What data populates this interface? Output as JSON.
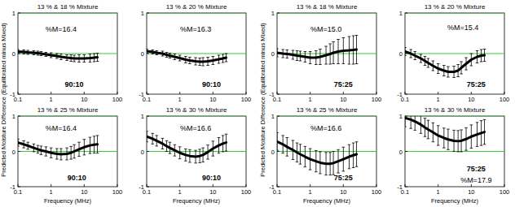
{
  "chart_data": [
    {
      "type": "line",
      "title": "13 % & 18 % Mixture",
      "ylabel": "Predicted Moisture Difference (Equilibrated minus Mixed)",
      "log": "x",
      "grid": false,
      "xlim": [
        0.1,
        100
      ],
      "ylim": [
        -1,
        1
      ],
      "xticks": [
        0.1,
        1,
        10,
        100
      ],
      "yticks": [
        -1,
        0,
        1
      ],
      "hlines": [
        0,
        1
      ],
      "x": [
        0.1,
        0.15,
        0.2,
        0.3,
        0.4,
        0.5,
        0.7,
        1,
        1.5,
        2,
        3,
        4,
        5,
        7,
        10,
        15,
        20,
        25
      ],
      "series": [
        {
          "color": "#000000",
          "values": [
            0.05,
            0.04,
            0.03,
            0.02,
            0.01,
            0,
            -0.02,
            -0.04,
            -0.06,
            -0.08,
            -0.1,
            -0.11,
            -0.12,
            -0.12,
            -0.12,
            -0.11,
            -0.1,
            -0.09
          ],
          "errors": [
            0.05,
            0.05,
            0.05,
            0.05,
            0.05,
            0.05,
            0.05,
            0.06,
            0.06,
            0.07,
            0.07,
            0.08,
            0.08,
            0.09,
            0.09,
            0.1,
            0.1,
            0.1
          ]
        }
      ],
      "annotations": [
        {
          "text": "%M=16.4",
          "x": 2,
          "y": 0.6
        },
        {
          "text": "90:10",
          "x": 5,
          "y": -0.75
        }
      ]
    },
    {
      "type": "line",
      "title": "13 % & 20 % Mixture",
      "log": "x",
      "grid": false,
      "xlim": [
        0.1,
        100
      ],
      "ylim": [
        -1,
        1
      ],
      "xticks": [
        0.1,
        1,
        10,
        100
      ],
      "yticks": [
        -1,
        0,
        1
      ],
      "hlines": [
        0,
        1
      ],
      "x": [
        0.1,
        0.15,
        0.2,
        0.3,
        0.4,
        0.5,
        0.7,
        1,
        1.5,
        2,
        3,
        4,
        5,
        7,
        10,
        15,
        20,
        25
      ],
      "series": [
        {
          "color": "#000000",
          "values": [
            0.06,
            0.04,
            0.02,
            0,
            -0.03,
            -0.05,
            -0.08,
            -0.11,
            -0.15,
            -0.17,
            -0.19,
            -0.2,
            -0.2,
            -0.19,
            -0.17,
            -0.14,
            -0.12,
            -0.1
          ],
          "errors": [
            0.05,
            0.05,
            0.05,
            0.06,
            0.06,
            0.06,
            0.07,
            0.07,
            0.08,
            0.08,
            0.09,
            0.09,
            0.1,
            0.1,
            0.1,
            0.1,
            0.1,
            0.1
          ]
        }
      ],
      "annotations": [
        {
          "text": "%M=16.3",
          "x": 3,
          "y": 0.6
        },
        {
          "text": "90:10",
          "x": 9,
          "y": -0.75
        }
      ]
    },
    {
      "type": "line",
      "title": "13 % & 18 % Mixture",
      "ylabel": "Predicted Moisture Difference (Equilibrated minus Mixed)",
      "log": "x",
      "grid": false,
      "xlim": [
        0.1,
        100
      ],
      "ylim": [
        -1,
        1
      ],
      "xticks": [
        0.1,
        1,
        10,
        100
      ],
      "yticks": [
        -1,
        0,
        1
      ],
      "hlines": [
        0,
        1
      ],
      "x": [
        0.1,
        0.15,
        0.2,
        0.3,
        0.4,
        0.5,
        0.7,
        1,
        1.5,
        2,
        3,
        4,
        5,
        7,
        10,
        15,
        20,
        25
      ],
      "series": [
        {
          "color": "#000000",
          "values": [
            0.02,
            0,
            -0.01,
            -0.03,
            -0.05,
            -0.06,
            -0.08,
            -0.1,
            -0.1,
            -0.08,
            -0.04,
            -0.01,
            0.02,
            0.05,
            0.07,
            0.08,
            0.09,
            0.1
          ],
          "errors": [
            0.1,
            0.1,
            0.1,
            0.11,
            0.12,
            0.12,
            0.13,
            0.15,
            0.17,
            0.19,
            0.22,
            0.25,
            0.27,
            0.3,
            0.32,
            0.34,
            0.35,
            0.35
          ]
        }
      ],
      "annotations": [
        {
          "text": "%M=15.0",
          "x": 3,
          "y": 0.6
        },
        {
          "text": "75:25",
          "x": 10,
          "y": -0.75
        }
      ]
    },
    {
      "type": "line",
      "title": "13 % & 20 % Mixture",
      "log": "x",
      "grid": false,
      "xlim": [
        0.1,
        100
      ],
      "ylim": [
        -1,
        1
      ],
      "xticks": [
        0.1,
        1,
        10,
        100
      ],
      "yticks": [
        -1,
        0,
        1
      ],
      "hlines": [
        0,
        1
      ],
      "x": [
        0.1,
        0.15,
        0.2,
        0.3,
        0.4,
        0.5,
        0.7,
        1,
        1.5,
        2,
        3,
        4,
        5,
        7,
        10,
        15,
        20,
        25
      ],
      "series": [
        {
          "color": "#000000",
          "values": [
            0.05,
            0,
            -0.05,
            -0.12,
            -0.18,
            -0.23,
            -0.3,
            -0.37,
            -0.42,
            -0.45,
            -0.45,
            -0.42,
            -0.35,
            -0.25,
            -0.15,
            -0.08,
            -0.05,
            -0.04
          ],
          "errors": [
            0.1,
            0.1,
            0.1,
            0.1,
            0.11,
            0.11,
            0.12,
            0.12,
            0.13,
            0.13,
            0.14,
            0.15,
            0.15,
            0.15,
            0.15,
            0.15,
            0.15,
            0.15
          ]
        }
      ],
      "annotations": [
        {
          "text": "%M=15.4",
          "x": 5.6,
          "y": 0.65
        },
        {
          "text": "75:25",
          "x": 14,
          "y": -0.75
        }
      ]
    },
    {
      "type": "line",
      "title": "13 % & 25 % Mixture",
      "xlabel": "Frequency (MHz)",
      "log": "x",
      "grid": false,
      "xlim": [
        0.1,
        100
      ],
      "ylim": [
        -1,
        1
      ],
      "xticks": [
        0.1,
        1,
        10,
        100
      ],
      "yticks": [
        -1,
        0,
        1
      ],
      "hlines": [
        0,
        1
      ],
      "x": [
        0.1,
        0.15,
        0.2,
        0.3,
        0.4,
        0.5,
        0.7,
        1,
        1.5,
        2,
        3,
        4,
        5,
        7,
        10,
        15,
        20,
        25
      ],
      "series": [
        {
          "color": "#000000",
          "values": [
            0.25,
            0.2,
            0.16,
            0.1,
            0.06,
            0.03,
            0,
            -0.04,
            -0.07,
            -0.08,
            -0.07,
            -0.04,
            0,
            0.06,
            0.12,
            0.17,
            0.19,
            0.2
          ],
          "errors": [
            0.1,
            0.1,
            0.1,
            0.11,
            0.11,
            0.12,
            0.13,
            0.14,
            0.15,
            0.16,
            0.17,
            0.18,
            0.19,
            0.2,
            0.22,
            0.23,
            0.24,
            0.25
          ]
        }
      ],
      "annotations": [
        {
          "text": "%M=16.4",
          "x": 2,
          "y": 0.65
        },
        {
          "text": "90:10",
          "x": 6,
          "y": -0.75
        }
      ]
    },
    {
      "type": "line",
      "title": "13 % & 30 % Mixture",
      "xlabel": "Frequency (MHz)",
      "log": "x",
      "grid": false,
      "xlim": [
        0.1,
        100
      ],
      "ylim": [
        -1,
        1
      ],
      "xticks": [
        0.1,
        1,
        10,
        100
      ],
      "yticks": [
        -1,
        0,
        1
      ],
      "hlines": [
        0,
        1
      ],
      "x": [
        0.1,
        0.15,
        0.2,
        0.3,
        0.4,
        0.5,
        0.7,
        1,
        1.5,
        2,
        3,
        4,
        5,
        7,
        10,
        15,
        20,
        25
      ],
      "series": [
        {
          "color": "#000000",
          "values": [
            0.42,
            0.36,
            0.3,
            0.22,
            0.15,
            0.1,
            0.03,
            -0.04,
            -0.1,
            -0.13,
            -0.15,
            -0.13,
            -0.1,
            -0.02,
            0.08,
            0.17,
            0.22,
            0.25
          ],
          "errors": [
            0.15,
            0.15,
            0.15,
            0.15,
            0.15,
            0.16,
            0.16,
            0.17,
            0.17,
            0.18,
            0.18,
            0.19,
            0.2,
            0.2,
            0.21,
            0.22,
            0.23,
            0.24
          ]
        }
      ],
      "annotations": [
        {
          "text": "%M=16.6",
          "x": 3,
          "y": 0.65
        },
        {
          "text": "90:10",
          "x": 9,
          "y": -0.75
        }
      ]
    },
    {
      "type": "line",
      "title": "13 % & 25 % Mixture",
      "xlabel": "Frequency (MHz)",
      "log": "x",
      "grid": false,
      "xlim": [
        0.1,
        100
      ],
      "ylim": [
        -1,
        1
      ],
      "xticks": [
        0.1,
        1,
        10,
        100
      ],
      "yticks": [
        -1,
        0,
        1
      ],
      "hlines": [
        0,
        1
      ],
      "x": [
        0.1,
        0.15,
        0.2,
        0.3,
        0.4,
        0.5,
        0.7,
        1,
        1.5,
        2,
        3,
        4,
        5,
        7,
        10,
        15,
        20,
        25
      ],
      "series": [
        {
          "color": "#000000",
          "values": [
            0.28,
            0.2,
            0.13,
            0.04,
            -0.03,
            -0.08,
            -0.15,
            -0.22,
            -0.28,
            -0.32,
            -0.35,
            -0.35,
            -0.33,
            -0.28,
            -0.22,
            -0.15,
            -0.11,
            -0.08
          ],
          "errors": [
            0.25,
            0.25,
            0.26,
            0.27,
            0.27,
            0.28,
            0.29,
            0.3,
            0.3,
            0.31,
            0.32,
            0.32,
            0.33,
            0.33,
            0.34,
            0.34,
            0.35,
            0.35
          ]
        }
      ],
      "annotations": [
        {
          "text": "%M=16.6",
          "x": 3,
          "y": 0.65
        },
        {
          "text": "75:25",
          "x": 10,
          "y": -0.75
        }
      ]
    },
    {
      "type": "line",
      "title": "13 % & 30 % Mixture",
      "xlabel": "Frequency (MHz)",
      "log": "x",
      "grid": false,
      "xlim": [
        0.1,
        100
      ],
      "ylim": [
        -1,
        1
      ],
      "xticks": [
        0.1,
        1,
        10,
        100
      ],
      "yticks": [
        -1,
        0,
        1
      ],
      "hlines": [
        0,
        1
      ],
      "x": [
        0.1,
        0.15,
        0.2,
        0.3,
        0.4,
        0.5,
        0.7,
        1,
        1.5,
        2,
        3,
        4,
        5,
        7,
        10,
        15,
        20,
        25
      ],
      "series": [
        {
          "color": "#000000",
          "values": [
            0.95,
            0.9,
            0.85,
            0.76,
            0.68,
            0.62,
            0.54,
            0.45,
            0.38,
            0.34,
            0.3,
            0.29,
            0.3,
            0.35,
            0.42,
            0.48,
            0.52,
            0.55
          ],
          "errors": [
            0.25,
            0.25,
            0.25,
            0.25,
            0.26,
            0.26,
            0.27,
            0.28,
            0.28,
            0.29,
            0.3,
            0.3,
            0.31,
            0.32,
            0.33,
            0.34,
            0.35,
            0.35
          ]
        }
      ],
      "annotations": [
        {
          "text": "75:25",
          "x": 14,
          "y": -0.5
        },
        {
          "text": "%M=17.9",
          "x": 14,
          "y": -0.82
        }
      ]
    }
  ]
}
